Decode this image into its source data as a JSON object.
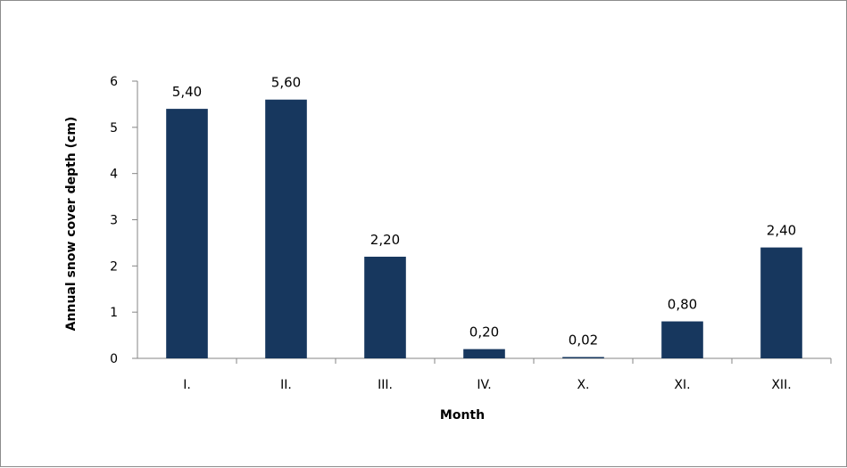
{
  "chart_data": {
    "type": "bar",
    "categories": [
      "I.",
      "II.",
      "III.",
      "IV.",
      "X.",
      "XI.",
      "XII."
    ],
    "values": [
      5.4,
      5.6,
      2.2,
      0.2,
      0.02,
      0.8,
      2.4
    ],
    "data_labels": [
      "5,40",
      "5,60",
      "2,20",
      "0,20",
      "0,02",
      "0,80",
      "2,40"
    ],
    "xlabel": "Month",
    "ylabel": "Annual snow cover depth (cm)",
    "ylim": [
      0,
      6
    ],
    "yticks": [
      "0",
      "1",
      "2",
      "3",
      "4",
      "5",
      "6"
    ],
    "grid": false,
    "legend": "none",
    "bar_color": "#17375e"
  }
}
